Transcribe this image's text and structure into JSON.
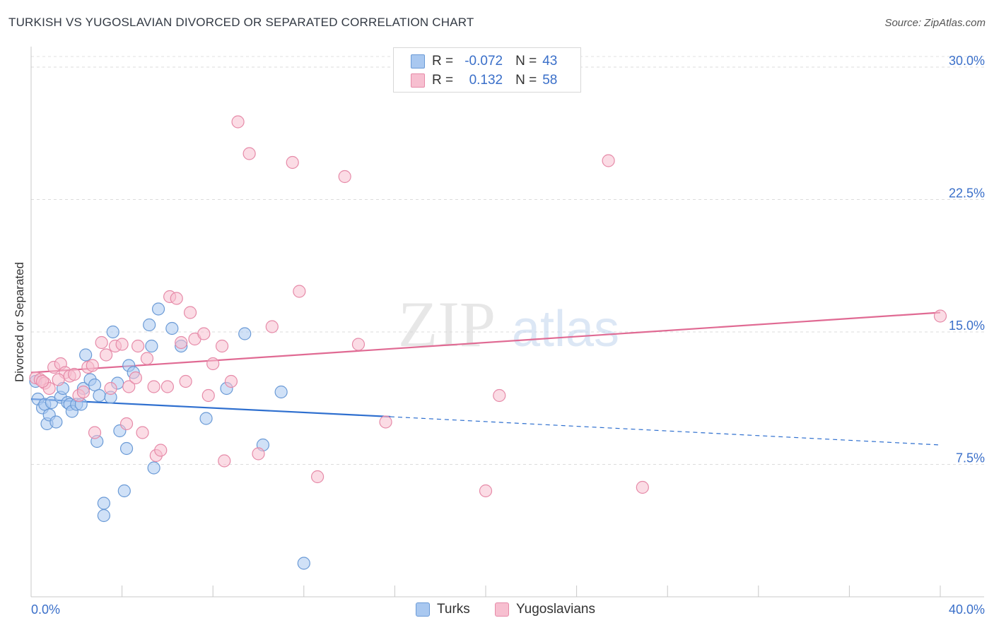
{
  "title": "TURKISH VS YUGOSLAVIAN DIVORCED OR SEPARATED CORRELATION CHART",
  "source": "Source: ZipAtlas.com",
  "watermark": {
    "zip": "ZIP",
    "atlas": "atlas"
  },
  "legend": {
    "rows": [
      {
        "r_label": "R =",
        "r_value": "-0.072",
        "n_label": "N =",
        "n_value": "43",
        "color": "#a9c8f0",
        "border": "#6a9ad6"
      },
      {
        "r_label": "R =",
        "r_value": "0.132",
        "n_label": "N =",
        "n_value": "58",
        "color": "#f7bfd0",
        "border": "#e68aa8"
      }
    ]
  },
  "bottom_legend": {
    "turks": "Turks",
    "yugoslavians": "Yugoslavians"
  },
  "chart_data": {
    "type": "scatter",
    "title": "TURKISH VS YUGOSLAVIAN DIVORCED OR SEPARATED CORRELATION CHART",
    "xlabel": "",
    "ylabel": "Divorced or Separated",
    "xlim": [
      0,
      40
    ],
    "ylim": [
      0,
      31
    ],
    "x_tick_labels": [
      "0.0%",
      "40.0%"
    ],
    "y_ticks": [
      7.5,
      15.0,
      22.5,
      30.0
    ],
    "y_tick_labels": [
      "7.5%",
      "15.0%",
      "22.5%",
      "30.0%"
    ],
    "series": [
      {
        "name": "Turks",
        "color": "#6a9ad6",
        "fill": "#a9c8f0",
        "line_color": "#2e6fcf",
        "trend": {
          "x0": 0,
          "y0": 11.2,
          "x1": 15.8,
          "y1": 10.2,
          "dash_x1": 40,
          "dash_y1": 8.6
        },
        "points": [
          [
            0.3,
            11.2
          ],
          [
            0.5,
            10.7
          ],
          [
            0.6,
            10.9
          ],
          [
            0.7,
            9.8
          ],
          [
            0.8,
            10.3
          ],
          [
            0.9,
            11.0
          ],
          [
            1.1,
            9.9
          ],
          [
            1.3,
            11.3
          ],
          [
            1.4,
            11.8
          ],
          [
            1.6,
            11.0
          ],
          [
            1.7,
            10.9
          ],
          [
            1.8,
            10.5
          ],
          [
            2.0,
            10.9
          ],
          [
            2.2,
            10.9
          ],
          [
            2.3,
            11.8
          ],
          [
            2.4,
            13.7
          ],
          [
            2.6,
            12.3
          ],
          [
            2.8,
            12.0
          ],
          [
            2.9,
            8.8
          ],
          [
            3.0,
            11.4
          ],
          [
            3.2,
            5.3
          ],
          [
            3.2,
            4.6
          ],
          [
            3.5,
            11.3
          ],
          [
            3.6,
            15.0
          ],
          [
            3.8,
            12.1
          ],
          [
            3.9,
            9.4
          ],
          [
            4.1,
            6.0
          ],
          [
            4.2,
            8.4
          ],
          [
            4.3,
            13.1
          ],
          [
            4.5,
            12.7
          ],
          [
            5.2,
            15.4
          ],
          [
            5.3,
            14.2
          ],
          [
            5.4,
            7.3
          ],
          [
            5.6,
            16.3
          ],
          [
            6.2,
            15.2
          ],
          [
            6.6,
            14.2
          ],
          [
            7.7,
            10.1
          ],
          [
            8.6,
            11.8
          ],
          [
            9.4,
            14.9
          ],
          [
            10.2,
            8.6
          ],
          [
            11.0,
            11.6
          ],
          [
            12.0,
            1.9
          ],
          [
            0.2,
            12.2
          ]
        ]
      },
      {
        "name": "Yugoslavians",
        "color": "#e68aa8",
        "fill": "#f7bfd0",
        "line_color": "#e06a93",
        "trend": {
          "x0": 0,
          "y0": 12.7,
          "x1": 40,
          "y1": 16.1
        },
        "points": [
          [
            0.2,
            12.4
          ],
          [
            0.4,
            12.3
          ],
          [
            0.6,
            12.1
          ],
          [
            0.8,
            11.8
          ],
          [
            1.0,
            13.0
          ],
          [
            1.3,
            13.2
          ],
          [
            1.5,
            12.7
          ],
          [
            1.7,
            12.5
          ],
          [
            1.9,
            12.6
          ],
          [
            2.1,
            11.4
          ],
          [
            2.3,
            11.6
          ],
          [
            2.5,
            13.0
          ],
          [
            2.7,
            13.1
          ],
          [
            2.8,
            9.3
          ],
          [
            3.1,
            14.4
          ],
          [
            3.3,
            13.7
          ],
          [
            3.5,
            11.8
          ],
          [
            3.7,
            14.2
          ],
          [
            4.0,
            14.3
          ],
          [
            4.2,
            9.8
          ],
          [
            4.3,
            11.9
          ],
          [
            4.6,
            12.4
          ],
          [
            4.7,
            14.2
          ],
          [
            4.9,
            9.3
          ],
          [
            5.1,
            13.5
          ],
          [
            5.4,
            11.9
          ],
          [
            5.5,
            8.0
          ],
          [
            5.7,
            8.3
          ],
          [
            6.0,
            11.9
          ],
          [
            6.1,
            17.0
          ],
          [
            6.4,
            16.9
          ],
          [
            6.6,
            14.4
          ],
          [
            6.8,
            12.2
          ],
          [
            7.0,
            16.1
          ],
          [
            7.2,
            14.6
          ],
          [
            7.6,
            14.9
          ],
          [
            7.8,
            11.4
          ],
          [
            8.0,
            13.2
          ],
          [
            8.4,
            14.2
          ],
          [
            8.5,
            7.7
          ],
          [
            8.8,
            12.2
          ],
          [
            9.1,
            26.9
          ],
          [
            9.6,
            25.1
          ],
          [
            10.0,
            8.1
          ],
          [
            10.6,
            15.3
          ],
          [
            11.5,
            24.6
          ],
          [
            11.8,
            17.3
          ],
          [
            12.6,
            6.8
          ],
          [
            13.8,
            23.8
          ],
          [
            14.4,
            14.3
          ],
          [
            15.6,
            9.9
          ],
          [
            20.0,
            6.0
          ],
          [
            20.6,
            11.4
          ],
          [
            25.4,
            24.7
          ],
          [
            26.9,
            6.2
          ],
          [
            40.0,
            15.9
          ],
          [
            0.5,
            12.2
          ],
          [
            1.2,
            12.3
          ]
        ]
      }
    ]
  }
}
